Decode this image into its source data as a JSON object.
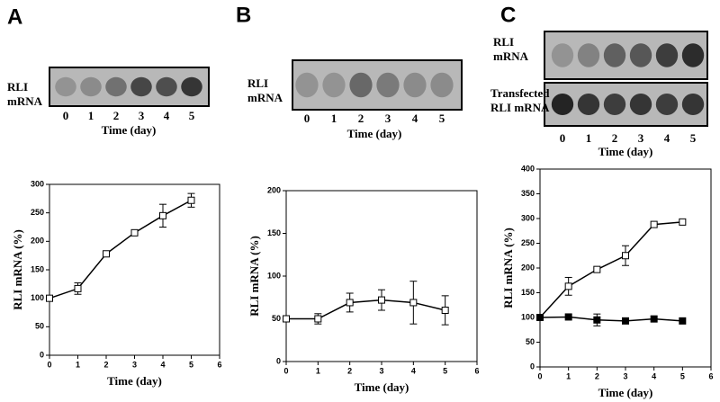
{
  "blots": [
    {
      "letter": "A",
      "labels": [
        [
          "RLI",
          "mRNA"
        ]
      ],
      "lanes": [
        0,
        1,
        2,
        3,
        4,
        5
      ],
      "xlabel": "Time (day)"
    },
    {
      "letter": "B",
      "labels": [
        [
          "RLI",
          "mRNA"
        ]
      ],
      "lanes": [
        0,
        1,
        2,
        3,
        4,
        5
      ],
      "xlabel": "Time (day)"
    },
    {
      "letter": "C",
      "labels": [
        [
          "RLI",
          "mRNA"
        ],
        [
          "Transfected",
          "RLI mRNA"
        ]
      ],
      "lanes": [
        0,
        1,
        2,
        3,
        4,
        5
      ],
      "xlabel": "Time (day)"
    }
  ],
  "chart_data": [
    {
      "type": "line",
      "x": [
        0,
        1,
        2,
        3,
        4,
        5
      ],
      "xlabel": "Time (day)",
      "ylabel": "RLI mRNA (%)",
      "xlim": [
        0,
        6
      ],
      "xticks": [
        0,
        1,
        2,
        3,
        4,
        5,
        6
      ],
      "ylim": [
        0,
        300
      ],
      "yticks": [
        0,
        50,
        100,
        150,
        200,
        250,
        300
      ],
      "series": [
        {
          "color": "#000000",
          "marker": "open",
          "values": [
            100,
            117,
            178,
            215,
            245,
            272
          ],
          "errors": [
            null,
            10,
            null,
            null,
            20,
            12
          ]
        }
      ]
    },
    {
      "type": "line",
      "x": [
        0,
        1,
        2,
        3,
        4,
        5
      ],
      "xlabel": "Time (day)",
      "ylabel": "RLI mRNA (%)",
      "xlim": [
        0,
        6
      ],
      "xticks": [
        0,
        1,
        2,
        3,
        4,
        5,
        6
      ],
      "ylim": [
        0,
        200
      ],
      "yticks": [
        0,
        50,
        100,
        150,
        200
      ],
      "series": [
        {
          "color": "#000000",
          "marker": "open",
          "values": [
            50,
            50,
            69,
            72,
            69,
            60
          ],
          "errors": [
            null,
            6,
            11,
            12,
            25,
            17
          ]
        }
      ]
    },
    {
      "type": "line",
      "x": [
        0,
        1,
        2,
        3,
        4,
        5
      ],
      "xlabel": "Time (day)",
      "ylabel": "RLI mRNA (%)",
      "xlim": [
        0,
        6
      ],
      "xticks": [
        0,
        1,
        2,
        3,
        4,
        5,
        6
      ],
      "ylim": [
        0,
        400
      ],
      "yticks": [
        0,
        50,
        100,
        150,
        200,
        250,
        300,
        350,
        400
      ],
      "series": [
        {
          "color": "#000000",
          "marker": "open",
          "values": [
            100,
            163,
            197,
            225,
            288,
            293
          ],
          "errors": [
            null,
            18,
            null,
            20,
            null,
            null
          ]
        },
        {
          "color": "#000000",
          "marker": "filled",
          "values": [
            100,
            101,
            95,
            93,
            97,
            93
          ],
          "errors": [
            null,
            null,
            12,
            null,
            null,
            null
          ]
        }
      ]
    }
  ]
}
